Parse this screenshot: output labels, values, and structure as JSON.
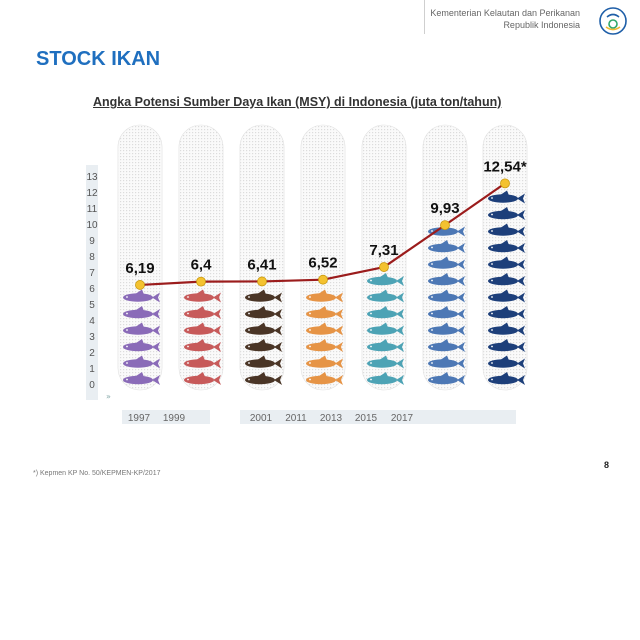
{
  "header": {
    "ministry_line1": "Kementerian Kelautan dan Perikanan",
    "ministry_line2": "Republik Indonesia",
    "logo_icon": "kkp-logo-icon"
  },
  "page_title": "STOCK IKAN",
  "footnote": "*) Kepmen KP No. 50/KEPMEN-KP/2017",
  "page_number": "8",
  "chart_data": {
    "type": "line",
    "title": "Angka Potensi Sumber Daya Ikan (MSY) di Indonesia (juta ton/tahun)",
    "y_ticks": [
      0,
      1,
      2,
      3,
      4,
      5,
      6,
      7,
      8,
      9,
      10,
      11,
      12,
      13
    ],
    "ylim": [
      0,
      13
    ],
    "x_tick_labels": [
      "1997",
      "1999",
      "2001",
      "2011",
      "2013",
      "2015",
      "2017"
    ],
    "points": [
      {
        "value": 6.19,
        "label": "6,19",
        "fish_color": "#8a6bb8"
      },
      {
        "value": 6.4,
        "label": "6,4",
        "fish_color": "#c75a5a"
      },
      {
        "value": 6.41,
        "label": "6,41",
        "fish_color": "#4a3526"
      },
      {
        "value": 6.52,
        "label": "6,52",
        "fish_color": "#e69446"
      },
      {
        "value": 7.31,
        "label": "7,31",
        "fish_color": "#4da3b5"
      },
      {
        "value": 9.93,
        "label": "9,93",
        "fish_color": "#4d78b5"
      },
      {
        "value": 12.54,
        "label": "12,54*",
        "fish_color": "#1d3f7a"
      }
    ],
    "line_color": "#9b1c1c",
    "marker_color": "#f4c230",
    "grid": false,
    "legend": "none"
  }
}
